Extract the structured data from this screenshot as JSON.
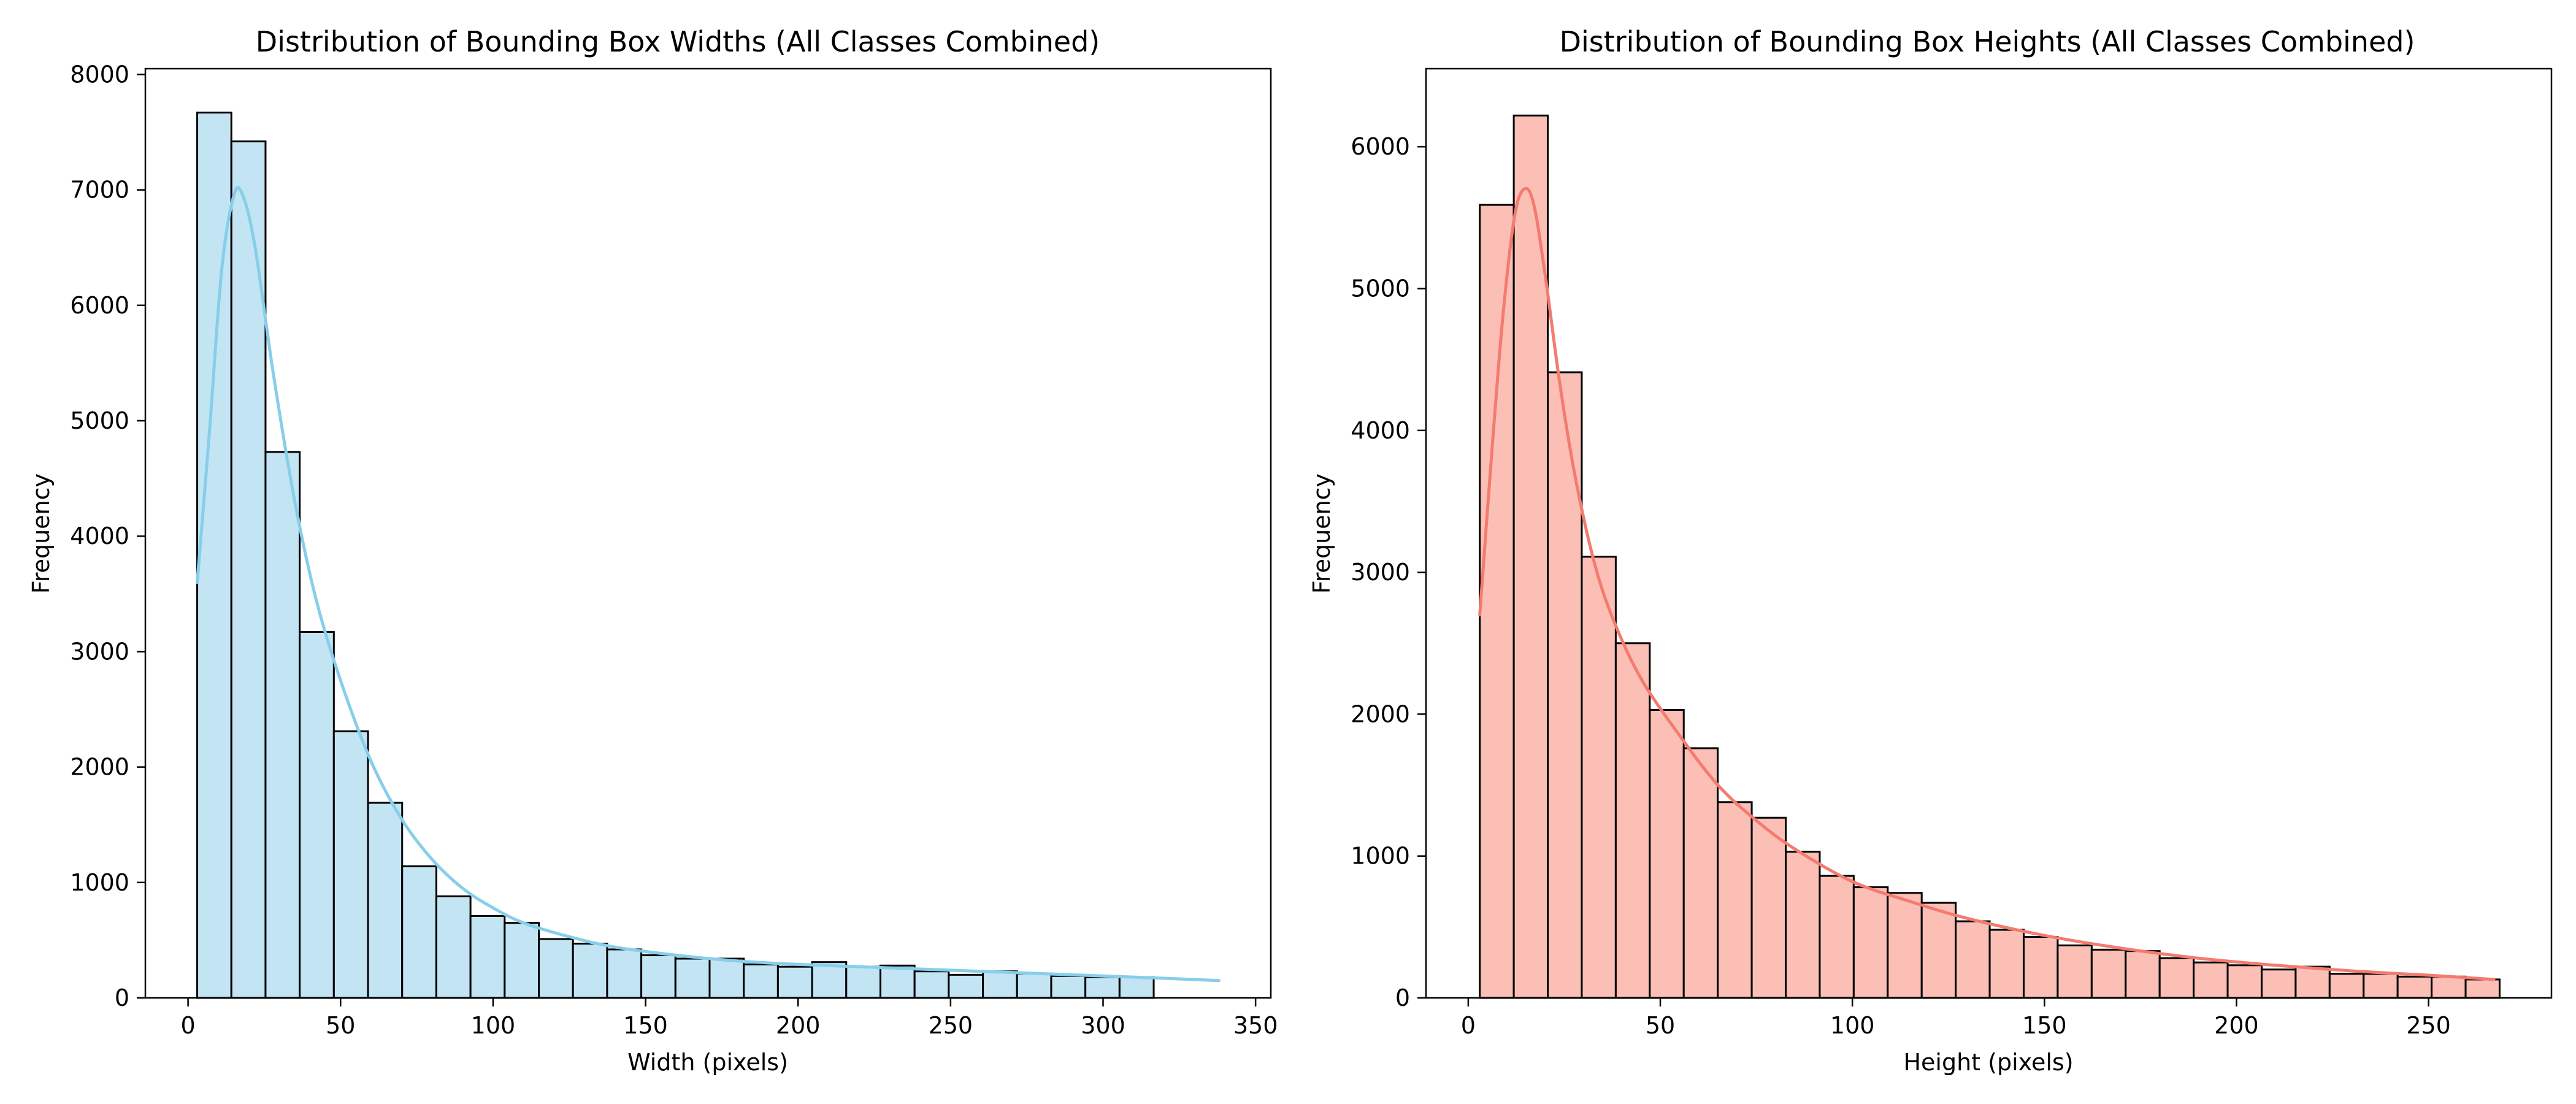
{
  "chart_data": [
    {
      "type": "bar",
      "subtype": "histogram-with-kde",
      "title": "Distribution of Bounding Box Widths (All Classes Combined)",
      "xlabel": "Width (pixels)",
      "ylabel": "Frequency",
      "xlim": [
        -14,
        355
      ],
      "ylim": [
        0,
        8050
      ],
      "x_ticks": [
        0,
        50,
        100,
        150,
        200,
        250,
        300,
        350
      ],
      "y_ticks": [
        0,
        1000,
        2000,
        3000,
        4000,
        5000,
        6000,
        7000,
        8000
      ],
      "grid": false,
      "colors": {
        "bar_fill": "#c3e4f2",
        "bar_edge": "#000000",
        "kde_line": "#87ceeb"
      },
      "bin_start": 3,
      "bin_width": 11.2,
      "values": [
        7670,
        7420,
        4730,
        3170,
        2310,
        1690,
        1140,
        880,
        710,
        650,
        510,
        470,
        420,
        370,
        340,
        340,
        290,
        270,
        310,
        270,
        280,
        230,
        200,
        230,
        210,
        190,
        180,
        180
      ],
      "kde": [
        [
          3,
          3600
        ],
        [
          7,
          4900
        ],
        [
          11,
          6300
        ],
        [
          15,
          6950
        ],
        [
          18,
          6950
        ],
        [
          22,
          6500
        ],
        [
          28,
          5400
        ],
        [
          35,
          4300
        ],
        [
          42,
          3450
        ],
        [
          50,
          2750
        ],
        [
          60,
          2050
        ],
        [
          70,
          1550
        ],
        [
          80,
          1200
        ],
        [
          90,
          950
        ],
        [
          100,
          780
        ],
        [
          110,
          650
        ],
        [
          125,
          530
        ],
        [
          140,
          440
        ],
        [
          160,
          370
        ],
        [
          180,
          320
        ],
        [
          200,
          290
        ],
        [
          220,
          270
        ],
        [
          240,
          250
        ],
        [
          260,
          230
        ],
        [
          280,
          210
        ],
        [
          300,
          190
        ],
        [
          320,
          170
        ],
        [
          338,
          150
        ]
      ]
    },
    {
      "type": "bar",
      "subtype": "histogram-with-kde",
      "title": "Distribution of Bounding Box Heights (All Classes Combined)",
      "xlabel": "Height (pixels)",
      "ylabel": "Frequency",
      "xlim": [
        -11,
        282
      ],
      "ylim": [
        0,
        6550
      ],
      "x_ticks": [
        0,
        50,
        100,
        150,
        200,
        250
      ],
      "y_ticks": [
        0,
        1000,
        2000,
        3000,
        4000,
        5000,
        6000
      ],
      "grid": false,
      "colors": {
        "bar_fill": "#fbbfb6",
        "bar_edge": "#000000",
        "kde_line": "#f47b6f"
      },
      "bin_start": 3,
      "bin_width": 8.85,
      "values": [
        5590,
        6220,
        4410,
        3110,
        2500,
        2030,
        1760,
        1380,
        1270,
        1030,
        860,
        780,
        740,
        670,
        540,
        480,
        430,
        370,
        340,
        330,
        280,
        250,
        230,
        200,
        220,
        170,
        170,
        150,
        150,
        130
      ],
      "kde": [
        [
          3,
          2700
        ],
        [
          6,
          3800
        ],
        [
          9,
          4800
        ],
        [
          12,
          5500
        ],
        [
          14.5,
          5700
        ],
        [
          17,
          5600
        ],
        [
          20,
          5100
        ],
        [
          24,
          4300
        ],
        [
          28,
          3650
        ],
        [
          33,
          3050
        ],
        [
          38,
          2650
        ],
        [
          45,
          2250
        ],
        [
          55,
          1850
        ],
        [
          65,
          1500
        ],
        [
          75,
          1250
        ],
        [
          85,
          1050
        ],
        [
          100,
          820
        ],
        [
          115,
          680
        ],
        [
          130,
          560
        ],
        [
          150,
          440
        ],
        [
          170,
          350
        ],
        [
          190,
          280
        ],
        [
          210,
          230
        ],
        [
          230,
          190
        ],
        [
          250,
          160
        ],
        [
          267,
          130
        ]
      ]
    }
  ]
}
